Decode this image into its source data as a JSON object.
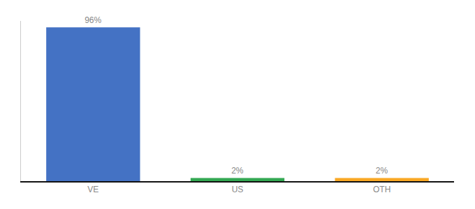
{
  "chart_data": {
    "type": "bar",
    "categories": [
      "VE",
      "US",
      "OTH"
    ],
    "values": [
      96,
      2,
      2
    ],
    "value_labels": [
      "96%",
      "2%",
      "2%"
    ],
    "colors": [
      "#4472C4",
      "#33A853",
      "#F9A825"
    ],
    "data_labels": true,
    "ylim": [
      0,
      100
    ],
    "grid": false,
    "tick_labels": "x"
  }
}
